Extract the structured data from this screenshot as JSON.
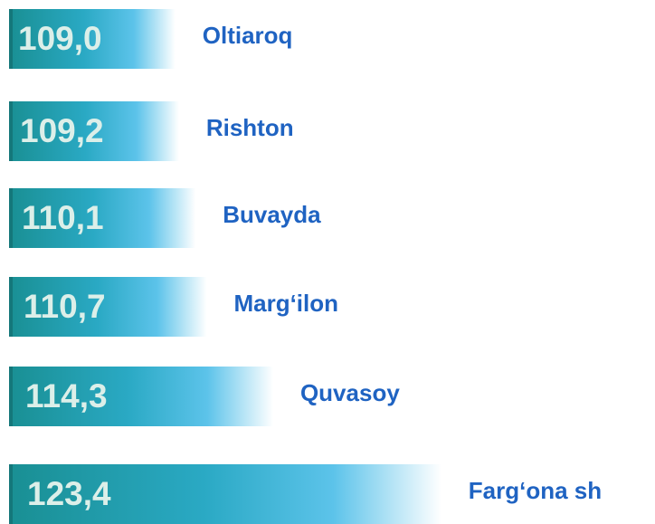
{
  "chart_data": {
    "type": "bar",
    "orientation": "horizontal",
    "categories": [
      "Oltiaroq",
      "Rishton",
      "Buvayda",
      "Marg‘ilon",
      "Quvasoy",
      "Farg‘ona sh"
    ],
    "values": [
      109.0,
      109.2,
      110.1,
      110.7,
      114.3,
      123.4
    ],
    "value_labels": [
      "109,0",
      "109,2",
      "110,1",
      "110,7",
      "114,3",
      "123,4"
    ],
    "xlim": [
      100,
      124
    ],
    "color": "#1e9fa6"
  }
}
